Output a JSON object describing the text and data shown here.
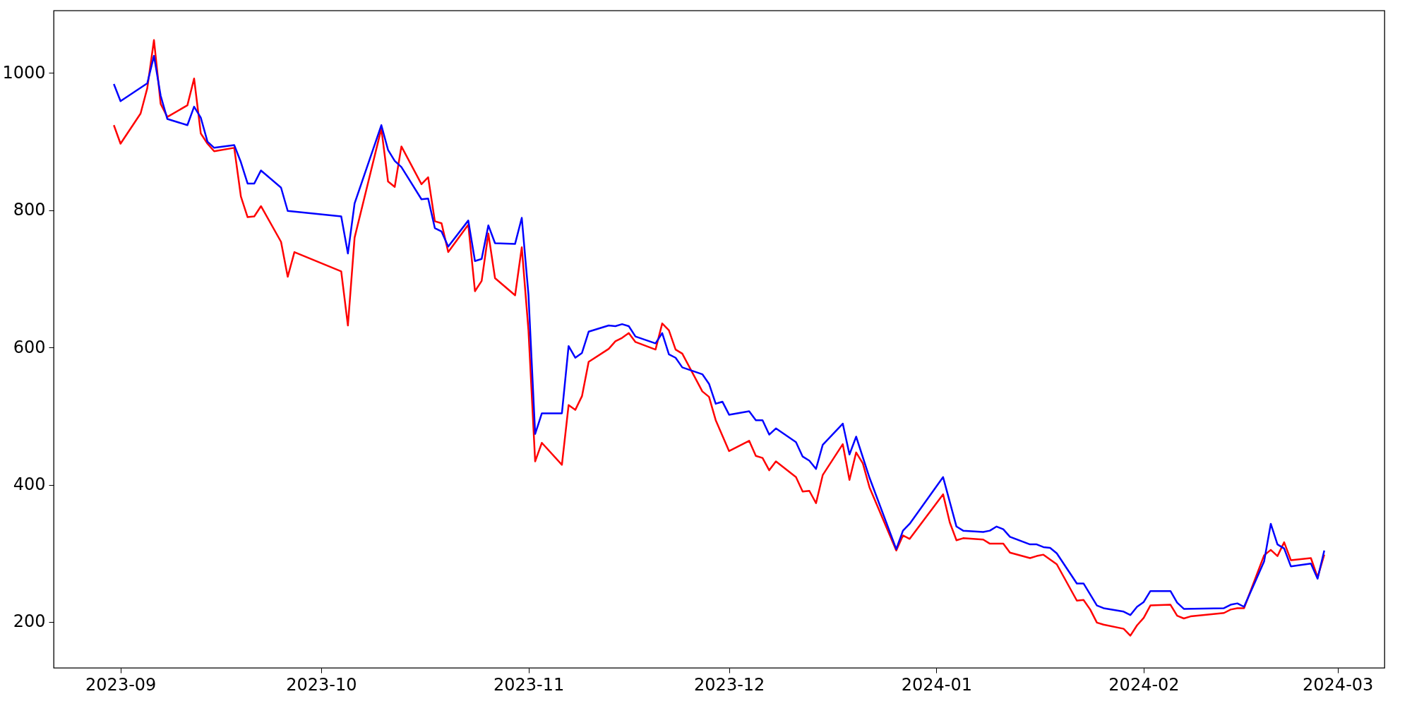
{
  "chart_data": {
    "type": "line",
    "xlim": [
      "2023-08-22",
      "2024-03-08"
    ],
    "ylim": [
      133,
      1091
    ],
    "xticks": [
      {
        "value": "2023-09-01",
        "label": "2023-09"
      },
      {
        "value": "2023-10-01",
        "label": "2023-10"
      },
      {
        "value": "2023-11-01",
        "label": "2023-11"
      },
      {
        "value": "2023-12-01",
        "label": "2023-12"
      },
      {
        "value": "2024-01-01",
        "label": "2024-01"
      },
      {
        "value": "2024-02-01",
        "label": "2024-02"
      },
      {
        "value": "2024-03-01",
        "label": "2024-03"
      }
    ],
    "yticks": [
      200,
      400,
      600,
      800,
      1000
    ],
    "grid": false,
    "series": [
      {
        "color": "#ff0000",
        "x": [
          "2023-08-31",
          "2023-09-01",
          "2023-09-04",
          "2023-09-05",
          "2023-09-06",
          "2023-09-07",
          "2023-09-08",
          "2023-09-11",
          "2023-09-12",
          "2023-09-13",
          "2023-09-14",
          "2023-09-15",
          "2023-09-18",
          "2023-09-19",
          "2023-09-20",
          "2023-09-21",
          "2023-09-22",
          "2023-09-25",
          "2023-09-26",
          "2023-09-27",
          "2023-10-04",
          "2023-10-05",
          "2023-10-06",
          "2023-10-10",
          "2023-10-11",
          "2023-10-12",
          "2023-10-13",
          "2023-10-16",
          "2023-10-17",
          "2023-10-18",
          "2023-10-19",
          "2023-10-20",
          "2023-10-23",
          "2023-10-24",
          "2023-10-25",
          "2023-10-26",
          "2023-10-27",
          "2023-10-30",
          "2023-10-31",
          "2023-11-01",
          "2023-11-02",
          "2023-11-03",
          "2023-11-06",
          "2023-11-07",
          "2023-11-08",
          "2023-11-09",
          "2023-11-10",
          "2023-11-13",
          "2023-11-14",
          "2023-11-15",
          "2023-11-16",
          "2023-11-17",
          "2023-11-20",
          "2023-11-21",
          "2023-11-22",
          "2023-11-23",
          "2023-11-24",
          "2023-11-27",
          "2023-11-28",
          "2023-11-29",
          "2023-12-01",
          "2023-12-04",
          "2023-12-05",
          "2023-12-06",
          "2023-12-07",
          "2023-12-08",
          "2023-12-11",
          "2023-12-12",
          "2023-12-13",
          "2023-12-14",
          "2023-12-15",
          "2023-12-18",
          "2023-12-19",
          "2023-12-20",
          "2023-12-21",
          "2023-12-22",
          "2023-12-26",
          "2023-12-27",
          "2023-12-28",
          "2024-01-02",
          "2024-01-03",
          "2024-01-04",
          "2024-01-05",
          "2024-01-08",
          "2024-01-09",
          "2024-01-10",
          "2024-01-11",
          "2024-01-12",
          "2024-01-15",
          "2024-01-16",
          "2024-01-17",
          "2024-01-18",
          "2024-01-19",
          "2024-01-22",
          "2024-01-23",
          "2024-01-24",
          "2024-01-25",
          "2024-01-26",
          "2024-01-29",
          "2024-01-30",
          "2024-01-31",
          "2024-02-01",
          "2024-02-02",
          "2024-02-05",
          "2024-02-06",
          "2024-02-07",
          "2024-02-08",
          "2024-02-13",
          "2024-02-14",
          "2024-02-15",
          "2024-02-16",
          "2024-02-19",
          "2024-02-20",
          "2024-02-21",
          "2024-02-22",
          "2024-02-23",
          "2024-02-26",
          "2024-02-27",
          "2024-02-28"
        ],
        "values": [
          924,
          897,
          941,
          978,
          1048,
          955,
          936,
          953,
          992,
          912,
          897,
          886,
          891,
          820,
          790,
          791,
          806,
          754,
          703,
          739,
          711,
          632,
          760,
          919,
          842,
          834,
          893,
          838,
          848,
          784,
          781,
          739,
          779,
          682,
          697,
          766,
          701,
          676,
          746,
          625,
          434,
          461,
          429,
          516,
          509,
          529,
          579,
          598,
          609,
          614,
          621,
          608,
          597,
          635,
          625,
          597,
          591,
          536,
          528,
          494,
          449,
          464,
          442,
          439,
          421,
          434,
          411,
          390,
          391,
          373,
          414,
          459,
          407,
          447,
          431,
          396,
          304,
          326,
          321,
          386,
          345,
          319,
          322,
          320,
          314,
          314,
          314,
          301,
          293,
          296,
          298,
          291,
          284,
          231,
          232,
          218,
          199,
          196,
          190,
          180,
          195,
          206,
          224,
          225,
          209,
          205,
          208,
          213,
          218,
          220,
          220,
          297,
          305,
          296,
          316,
          290,
          293,
          265,
          298
        ]
      },
      {
        "color": "#0000ff",
        "x": [
          "2023-08-31",
          "2023-09-01",
          "2023-09-05",
          "2023-09-06",
          "2023-09-07",
          "2023-09-08",
          "2023-09-11",
          "2023-09-12",
          "2023-09-13",
          "2023-09-14",
          "2023-09-15",
          "2023-09-18",
          "2023-09-19",
          "2023-09-20",
          "2023-09-21",
          "2023-09-22",
          "2023-09-25",
          "2023-09-26",
          "2023-10-04",
          "2023-10-05",
          "2023-10-06",
          "2023-10-10",
          "2023-10-11",
          "2023-10-12",
          "2023-10-13",
          "2023-10-16",
          "2023-10-17",
          "2023-10-18",
          "2023-10-19",
          "2023-10-20",
          "2023-10-23",
          "2023-10-24",
          "2023-10-25",
          "2023-10-26",
          "2023-10-27",
          "2023-10-30",
          "2023-10-31",
          "2023-11-01",
          "2023-11-02",
          "2023-11-03",
          "2023-11-06",
          "2023-11-07",
          "2023-11-08",
          "2023-11-09",
          "2023-11-10",
          "2023-11-13",
          "2023-11-14",
          "2023-11-15",
          "2023-11-16",
          "2023-11-17",
          "2023-11-20",
          "2023-11-21",
          "2023-11-22",
          "2023-11-23",
          "2023-11-24",
          "2023-11-27",
          "2023-11-28",
          "2023-11-29",
          "2023-11-30",
          "2023-12-01",
          "2023-12-04",
          "2023-12-05",
          "2023-12-06",
          "2023-12-07",
          "2023-12-08",
          "2023-12-11",
          "2023-12-12",
          "2023-12-13",
          "2023-12-14",
          "2023-12-15",
          "2023-12-18",
          "2023-12-19",
          "2023-12-20",
          "2023-12-22",
          "2023-12-26",
          "2023-12-27",
          "2023-12-28",
          "2024-01-02",
          "2024-01-04",
          "2024-01-05",
          "2024-01-08",
          "2024-01-09",
          "2024-01-10",
          "2024-01-11",
          "2024-01-12",
          "2024-01-15",
          "2024-01-16",
          "2024-01-17",
          "2024-01-18",
          "2024-01-19",
          "2024-01-22",
          "2024-01-23",
          "2024-01-25",
          "2024-01-26",
          "2024-01-29",
          "2024-01-30",
          "2024-01-31",
          "2024-02-01",
          "2024-02-02",
          "2024-02-05",
          "2024-02-06",
          "2024-02-07",
          "2024-02-13",
          "2024-02-14",
          "2024-02-15",
          "2024-02-16",
          "2024-02-19",
          "2024-02-20",
          "2024-02-21",
          "2024-02-22",
          "2024-02-23",
          "2024-02-26",
          "2024-02-27",
          "2024-02-28"
        ],
        "values": [
          984,
          959,
          985,
          1025,
          967,
          933,
          924,
          951,
          935,
          900,
          891,
          895,
          870,
          839,
          839,
          858,
          833,
          799,
          791,
          737,
          810,
          924,
          888,
          872,
          863,
          816,
          817,
          774,
          769,
          747,
          785,
          726,
          729,
          778,
          752,
          751,
          789,
          677,
          474,
          504,
          504,
          602,
          585,
          592,
          623,
          632,
          631,
          634,
          631,
          616,
          606,
          621,
          590,
          585,
          571,
          561,
          547,
          518,
          521,
          502,
          507,
          494,
          494,
          473,
          482,
          462,
          441,
          435,
          423,
          458,
          489,
          444,
          470,
          410,
          306,
          333,
          343,
          411,
          339,
          333,
          331,
          333,
          339,
          335,
          324,
          313,
          313,
          309,
          308,
          300,
          256,
          256,
          224,
          220,
          215,
          210,
          222,
          229,
          245,
          245,
          228,
          219,
          220,
          225,
          227,
          222,
          288,
          343,
          313,
          307,
          281,
          285,
          263,
          304
        ]
      }
    ]
  }
}
